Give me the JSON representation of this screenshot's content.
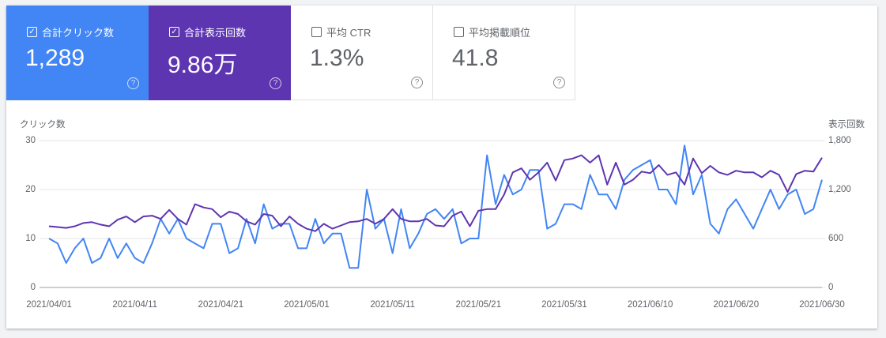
{
  "cards": [
    {
      "label": "合計クリック数",
      "value": "1,289"
    },
    {
      "label": "合計表示回数",
      "value": "9.86万"
    },
    {
      "label": "平均 CTR",
      "value": "1.3%"
    },
    {
      "label": "平均掲載順位",
      "value": "41.8"
    }
  ],
  "chart_data": {
    "type": "line",
    "ylabel": "クリック数",
    "y2label": "表示回数",
    "x": [
      "2021/04/01",
      null,
      null,
      null,
      null,
      null,
      null,
      null,
      null,
      null,
      "2021/04/11",
      null,
      null,
      null,
      null,
      null,
      null,
      null,
      null,
      null,
      "2021/04/21",
      null,
      null,
      null,
      null,
      null,
      null,
      null,
      null,
      null,
      "2021/05/01",
      null,
      null,
      null,
      null,
      null,
      null,
      null,
      null,
      null,
      "2021/05/11",
      null,
      null,
      null,
      null,
      null,
      null,
      null,
      null,
      null,
      "2021/05/21",
      null,
      null,
      null,
      null,
      null,
      null,
      null,
      null,
      null,
      "2021/05/31",
      null,
      null,
      null,
      null,
      null,
      null,
      null,
      null,
      null,
      "2021/06/10",
      null,
      null,
      null,
      null,
      null,
      null,
      null,
      null,
      null,
      "2021/06/20",
      null,
      null,
      null,
      null,
      null,
      null,
      null,
      null,
      null,
      "2021/06/30"
    ],
    "series": [
      {
        "name": "クリック数",
        "color": "#4285f4",
        "axis": "y",
        "values": [
          10,
          9,
          5,
          8,
          10,
          5,
          6,
          10,
          6,
          9,
          6,
          5,
          9,
          14,
          11,
          14,
          10,
          9,
          8,
          13,
          13,
          7,
          8,
          14,
          9,
          17,
          12,
          13,
          13,
          8,
          8,
          14,
          9,
          11,
          11,
          4,
          4,
          20,
          12,
          14,
          7,
          16,
          8,
          11,
          15,
          16,
          14,
          16,
          9,
          10,
          10,
          27,
          17,
          23,
          19,
          20,
          24,
          24,
          12,
          13,
          17,
          17,
          16,
          23,
          19,
          19,
          16,
          22,
          24,
          25,
          26,
          20,
          20,
          17,
          29,
          19,
          23,
          13,
          11,
          16,
          18,
          15,
          12,
          16,
          20,
          16,
          19,
          20,
          15,
          16,
          22
        ]
      },
      {
        "name": "表示回数",
        "color": "#5e35b1",
        "axis": "y2",
        "values": [
          750,
          740,
          730,
          750,
          790,
          800,
          770,
          750,
          830,
          870,
          800,
          870,
          880,
          840,
          950,
          840,
          770,
          1020,
          980,
          960,
          860,
          930,
          900,
          810,
          770,
          900,
          880,
          750,
          870,
          780,
          720,
          690,
          780,
          720,
          760,
          800,
          810,
          840,
          780,
          840,
          960,
          840,
          810,
          810,
          840,
          760,
          750,
          880,
          930,
          750,
          940,
          960,
          960,
          1140,
          1410,
          1460,
          1320,
          1410,
          1530,
          1310,
          1560,
          1580,
          1620,
          1530,
          1620,
          1260,
          1530,
          1260,
          1320,
          1420,
          1400,
          1500,
          1380,
          1410,
          1260,
          1580,
          1400,
          1490,
          1410,
          1380,
          1430,
          1410,
          1410,
          1350,
          1430,
          1380,
          1170,
          1390,
          1430,
          1420,
          1590
        ]
      }
    ],
    "ylim": [
      0,
      30
    ],
    "yticks": [
      0,
      10,
      20,
      30
    ],
    "y2lim": [
      0,
      1800
    ],
    "y2ticks": [
      0,
      600,
      {
        "value": 1200,
        "label": "1,200"
      },
      {
        "value": 1800,
        "label": "1,800"
      }
    ],
    "grid": true
  }
}
